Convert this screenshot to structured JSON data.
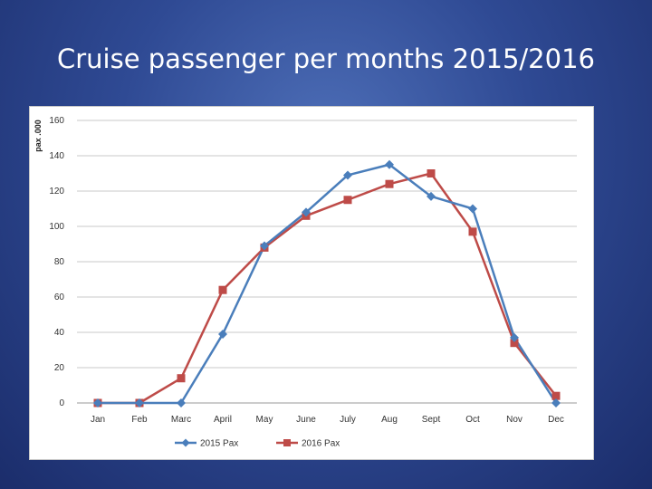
{
  "slide": {
    "title": "Cruise passenger per months 2015/2016"
  },
  "colors": {
    "series_2015": "#4a7ebb",
    "series_2016": "#be4b48",
    "grid": "#c9c9c9"
  },
  "chart_data": {
    "type": "line",
    "title": "",
    "xlabel": "",
    "ylabel": "pax .000",
    "ylim": [
      0,
      160
    ],
    "yticks": [
      0,
      20,
      40,
      60,
      80,
      100,
      120,
      140,
      160
    ],
    "categories": [
      "Jan",
      "Feb",
      "Marc",
      "April",
      "May",
      "June",
      "July",
      "Aug",
      "Sept",
      "Oct",
      "Nov",
      "Dec"
    ],
    "grid": true,
    "legend": "bottom",
    "series": [
      {
        "name": "2015 Pax",
        "marker": "diamond",
        "color": "#4a7ebb",
        "values": [
          0,
          0,
          0,
          39,
          89,
          108,
          129,
          135,
          117,
          110,
          37,
          0
        ]
      },
      {
        "name": "2016 Pax",
        "marker": "square",
        "color": "#be4b48",
        "values": [
          0,
          0,
          14,
          64,
          88,
          106,
          115,
          124,
          130,
          97,
          34,
          4
        ]
      }
    ]
  }
}
